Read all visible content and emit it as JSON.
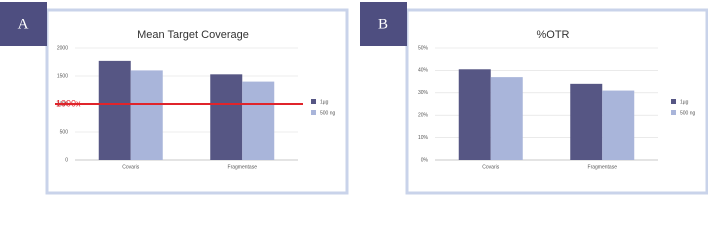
{
  "chart_data": [
    {
      "type": "bar",
      "panel": "A",
      "title": "Mean Target Coverage",
      "categories": [
        "Covaris",
        "Fragmentase"
      ],
      "series": [
        {
          "name": "1µg",
          "color": "#565684",
          "values": [
            1770,
            1530
          ]
        },
        {
          "name": "500 ng",
          "color": "#a9b5da",
          "values": [
            1600,
            1400
          ]
        }
      ],
      "ylim": [
        0,
        2000
      ],
      "yticks": [
        0,
        500,
        1000,
        1500,
        2000
      ],
      "grid": true,
      "legend": "right",
      "reference_line": {
        "value": 1000,
        "label": "1000x",
        "color": "#e0242b"
      }
    },
    {
      "type": "bar",
      "panel": "B",
      "title": "%OTR",
      "categories": [
        "Covaris",
        "Fragmentase"
      ],
      "series": [
        {
          "name": "1µg",
          "color": "#565684",
          "values": [
            40.5,
            34
          ]
        },
        {
          "name": "500 ng",
          "color": "#a9b5da",
          "values": [
            37,
            31
          ]
        }
      ],
      "ylim": [
        0,
        50
      ],
      "yticks": [
        {
          "value": 0,
          "label": "0%"
        },
        {
          "value": 10,
          "label": "10%"
        },
        {
          "value": 20,
          "label": "20%"
        },
        {
          "value": 30,
          "label": "30%"
        },
        {
          "value": 40,
          "label": "40%"
        },
        {
          "value": 50,
          "label": "50%"
        }
      ],
      "grid": true,
      "legend": "right"
    }
  ]
}
